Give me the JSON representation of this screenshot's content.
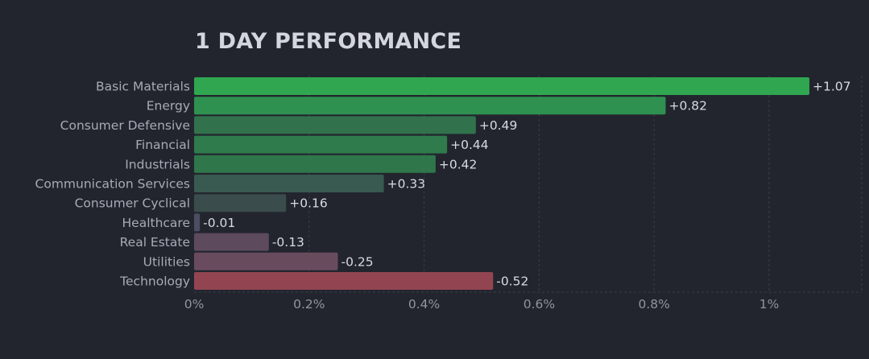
{
  "chart_data": {
    "type": "bar",
    "orientation": "horizontal",
    "title": "1 DAY PERFORMANCE",
    "categories": [
      "Basic Materials",
      "Energy",
      "Consumer Defensive",
      "Financial",
      "Industrials",
      "Communication Services",
      "Consumer Cyclical",
      "Healthcare",
      "Real Estate",
      "Utilities",
      "Technology"
    ],
    "values": [
      1.07,
      0.82,
      0.49,
      0.44,
      0.42,
      0.33,
      0.16,
      -0.01,
      -0.13,
      -0.25,
      -0.52
    ],
    "value_labels": [
      "+1.07",
      "+0.82",
      "+0.49",
      "+0.44",
      "+0.42",
      "+0.33",
      "+0.16",
      "-0.01",
      "-0.13",
      "-0.25",
      "-0.52"
    ],
    "bar_colors": [
      "#30a651",
      "#2f9150",
      "#31724c",
      "#2f7b4b",
      "#2f774b",
      "#395a50",
      "#3a4d4c",
      "#4b4e62",
      "#5d4a5d",
      "#684c5d",
      "#924551"
    ],
    "x_ticks": [
      "0%",
      "0.2%",
      "0.4%",
      "0.6%",
      "0.8%",
      "1%"
    ],
    "x_tick_values": [
      0,
      0.2,
      0.4,
      0.6,
      0.8,
      1.0
    ],
    "xlim": [
      0,
      1.16
    ],
    "bar_length": "absolute value",
    "xlabel": "",
    "ylabel": "",
    "grid": true,
    "colors": {
      "background": "#22252e",
      "grid": "#3a3e4a",
      "title": "#d4d6dd"
    }
  }
}
